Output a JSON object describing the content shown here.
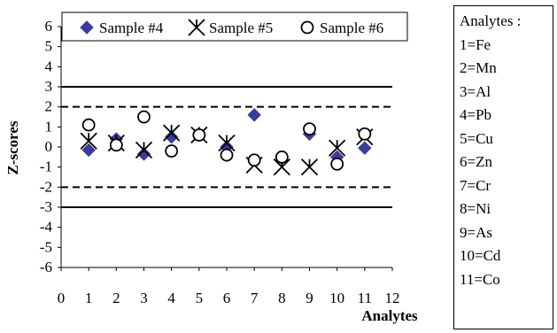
{
  "chart_data": {
    "type": "scatter",
    "title": "",
    "xlabel": "Analytes",
    "ylabel": "Z-scores",
    "xlim": [
      0,
      12
    ],
    "ylim": [
      -6,
      6
    ],
    "x_ticks": [
      "0",
      "1",
      "2",
      "3",
      "4",
      "5",
      "6",
      "7",
      "8",
      "9",
      "10",
      "11",
      "12"
    ],
    "y_ticks": [
      "6",
      "5",
      "4",
      "3",
      "2",
      "1",
      "0",
      "-1",
      "-2",
      "-3",
      "-4",
      "-5",
      "-6"
    ],
    "grid": false,
    "legend_position": "top",
    "reference_lines": [
      {
        "y": 3,
        "style": "solid"
      },
      {
        "y": 2,
        "style": "dashed"
      },
      {
        "y": -2,
        "style": "dashed"
      },
      {
        "y": -3,
        "style": "solid"
      }
    ],
    "x": [
      1,
      2,
      3,
      4,
      5,
      6,
      7,
      8,
      9,
      10,
      11
    ],
    "series": [
      {
        "name": "Sample #4",
        "marker": "diamond",
        "color": "#3b3b9e",
        "values": [
          -0.15,
          0.4,
          -0.35,
          0.5,
          0.6,
          0.0,
          1.6,
          -0.55,
          0.65,
          -0.5,
          -0.05
        ]
      },
      {
        "name": "Sample #5",
        "marker": "x-star",
        "color": "#000000",
        "values": [
          0.3,
          0.2,
          -0.15,
          0.7,
          0.6,
          0.2,
          -0.9,
          -1.0,
          -1.0,
          -0.05,
          0.5
        ]
      },
      {
        "name": "Sample #6",
        "marker": "circle",
        "color": "#000000",
        "values": [
          1.1,
          0.1,
          1.5,
          -0.2,
          0.6,
          -0.4,
          -0.65,
          -0.5,
          0.9,
          -0.85,
          0.65
        ]
      }
    ]
  },
  "analytes_legend": {
    "title": "Analytes :",
    "items": [
      "1=Fe",
      "2=Mn",
      "3=Al",
      "4=Pb",
      "5=Cu",
      "6=Zn",
      "7=Cr",
      "8=Ni",
      "9=As",
      "10=Cd",
      "11=Co"
    ]
  }
}
